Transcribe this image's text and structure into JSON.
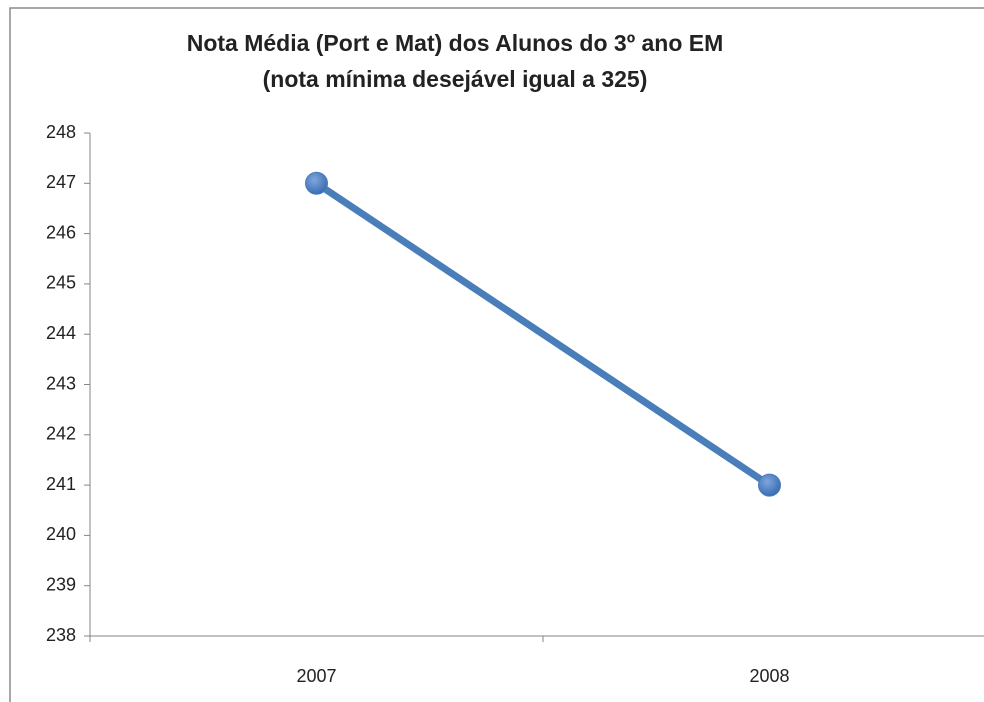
{
  "chart_data": {
    "type": "line",
    "title": "Nota Média (Port e Mat) dos Alunos do 3º ano EM",
    "subtitle": "(nota mínima desejável igual a 325)",
    "categories": [
      "2007",
      "2008"
    ],
    "values": [
      247,
      241
    ],
    "color": "#4a7ebb",
    "ylim": [
      238,
      248
    ],
    "yticks": [
      238,
      239,
      240,
      241,
      242,
      243,
      244,
      245,
      246,
      247,
      248
    ],
    "grid": false
  }
}
